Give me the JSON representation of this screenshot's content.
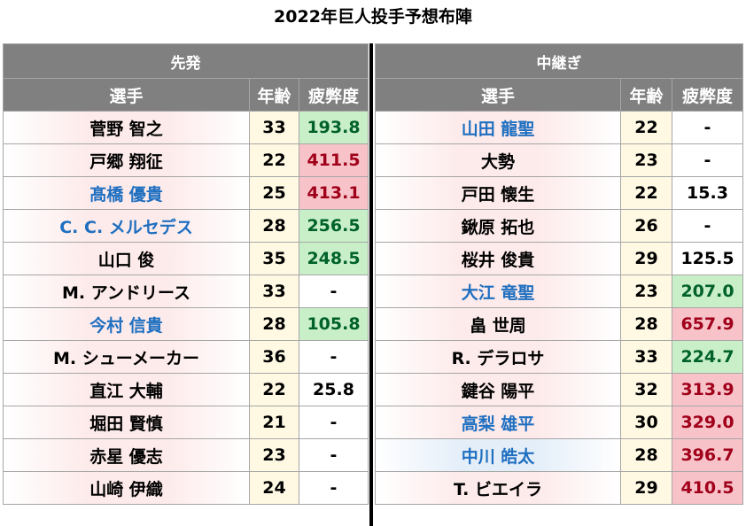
{
  "title": "2022年巨人投手予想布陣",
  "colors": {
    "header_bg": "#808080",
    "blue_name": "#1f6fc0",
    "good": "#c9efc9",
    "bad": "#f7c3c9",
    "age_bg": "#fff9e3"
  },
  "left": {
    "group": "先発",
    "headers": {
      "name": "選手",
      "age": "年齢",
      "fatigue": "疲弊度"
    },
    "rows": [
      {
        "name": "菅野 智之",
        "age": "33",
        "fatigue": "193.8",
        "name_style": "",
        "fatigue_style": "g"
      },
      {
        "name": "戸郷 翔征",
        "age": "22",
        "fatigue": "411.5",
        "name_style": "",
        "fatigue_style": "r"
      },
      {
        "name": "髙橋 優貴",
        "age": "25",
        "fatigue": "413.1",
        "name_style": "blue",
        "fatigue_style": "r"
      },
      {
        "name": "C. C. メルセデス",
        "age": "28",
        "fatigue": "256.5",
        "name_style": "blue",
        "fatigue_style": "g"
      },
      {
        "name": "山口 俊",
        "age": "35",
        "fatigue": "248.5",
        "name_style": "",
        "fatigue_style": "g"
      },
      {
        "name": "M. アンドリース",
        "age": "33",
        "fatigue": "-",
        "name_style": "",
        "fatigue_style": ""
      },
      {
        "name": "今村 信貴",
        "age": "28",
        "fatigue": "105.8",
        "name_style": "blue",
        "fatigue_style": "g"
      },
      {
        "name": "M. シューメーカー",
        "age": "36",
        "fatigue": "-",
        "name_style": "",
        "fatigue_style": ""
      },
      {
        "name": "直江 大輔",
        "age": "22",
        "fatigue": "25.8",
        "name_style": "",
        "fatigue_style": ""
      },
      {
        "name": "堀田 賢慎",
        "age": "21",
        "fatigue": "-",
        "name_style": "",
        "fatigue_style": ""
      },
      {
        "name": "赤星 優志",
        "age": "23",
        "fatigue": "-",
        "name_style": "",
        "fatigue_style": ""
      },
      {
        "name": "山崎 伊織",
        "age": "24",
        "fatigue": "-",
        "name_style": "",
        "fatigue_style": ""
      }
    ]
  },
  "right": {
    "group": "中継ぎ",
    "headers": {
      "name": "選手",
      "age": "年齢",
      "fatigue": "疲弊度"
    },
    "rows": [
      {
        "name": "山田 龍聖",
        "age": "22",
        "fatigue": "-",
        "name_style": "blue",
        "fatigue_style": ""
      },
      {
        "name": "大勢",
        "age": "23",
        "fatigue": "-",
        "name_style": "",
        "fatigue_style": ""
      },
      {
        "name": "戸田 懐生",
        "age": "22",
        "fatigue": "15.3",
        "name_style": "",
        "fatigue_style": ""
      },
      {
        "name": "鍬原 拓也",
        "age": "26",
        "fatigue": "-",
        "name_style": "",
        "fatigue_style": ""
      },
      {
        "name": "桜井 俊貴",
        "age": "29",
        "fatigue": "125.5",
        "name_style": "",
        "fatigue_style": ""
      },
      {
        "name": "大江 竜聖",
        "age": "23",
        "fatigue": "207.0",
        "name_style": "blue",
        "fatigue_style": "g"
      },
      {
        "name": "畠 世周",
        "age": "28",
        "fatigue": "657.9",
        "name_style": "",
        "fatigue_style": "r"
      },
      {
        "name": "R. デラロサ",
        "age": "33",
        "fatigue": "224.7",
        "name_style": "",
        "fatigue_style": "g"
      },
      {
        "name": "鍵谷 陽平",
        "age": "32",
        "fatigue": "313.9",
        "name_style": "",
        "fatigue_style": "r"
      },
      {
        "name": "高梨 雄平",
        "age": "30",
        "fatigue": "329.0",
        "name_style": "blue",
        "fatigue_style": "r"
      },
      {
        "name": "中川 皓太",
        "age": "28",
        "fatigue": "396.7",
        "name_style": "blue hl",
        "fatigue_style": "r"
      },
      {
        "name": "T. ビエイラ",
        "age": "29",
        "fatigue": "410.5",
        "name_style": "",
        "fatigue_style": "r"
      }
    ]
  }
}
